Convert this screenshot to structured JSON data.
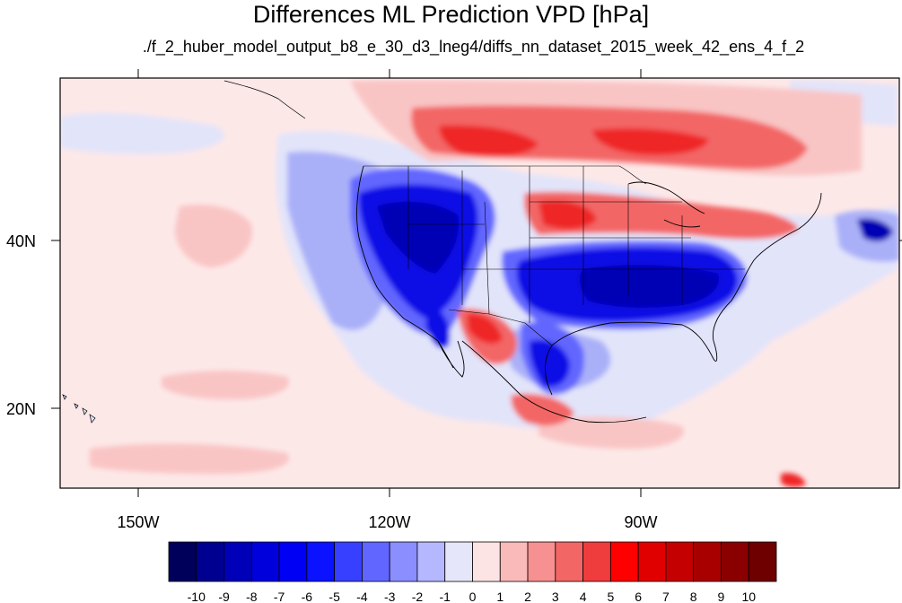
{
  "title": "Differences ML Prediction VPD [hPa]",
  "subtitle": "./f_2_huber_model_output_b8_e_30_d3_lneg4/diffs_nn_dataset_2015_week_42_ens_4_f_2",
  "map": {
    "lon_ticks": [
      "150W",
      "120W",
      "90W"
    ],
    "lat_ticks": [
      "40N",
      "20N"
    ]
  },
  "colorbar": {
    "labels": [
      "-10",
      "-9",
      "-8",
      "-7",
      "-6",
      "-5",
      "-4",
      "-3",
      "-2",
      "-1",
      "0",
      "1",
      "2",
      "3",
      "4",
      "5",
      "6",
      "7",
      "8",
      "9",
      "10"
    ],
    "colors": [
      "#00005a",
      "#000090",
      "#0000b8",
      "#0000dc",
      "#0000f4",
      "#0a12ff",
      "#3840ff",
      "#6066ff",
      "#8a8eff",
      "#b6b8ff",
      "#e6e6fa",
      "#fde4e4",
      "#fbbaba",
      "#f79090",
      "#f36666",
      "#ef3c3c",
      "#ff0000",
      "#e00000",
      "#c40000",
      "#a80000",
      "#8a0000",
      "#6e0000"
    ]
  },
  "field_colors": {
    "ocean": "#fde8e8",
    "light_blue": "#e2e4fa",
    "mid_blue": "#aab0f8",
    "blue": "#6266ff",
    "dark_blue": "#0a0ae6",
    "deep_blue": "#0000b4",
    "light_red": "#f9c4c4",
    "red": "#f36666",
    "dark_red": "#ef2828"
  }
}
